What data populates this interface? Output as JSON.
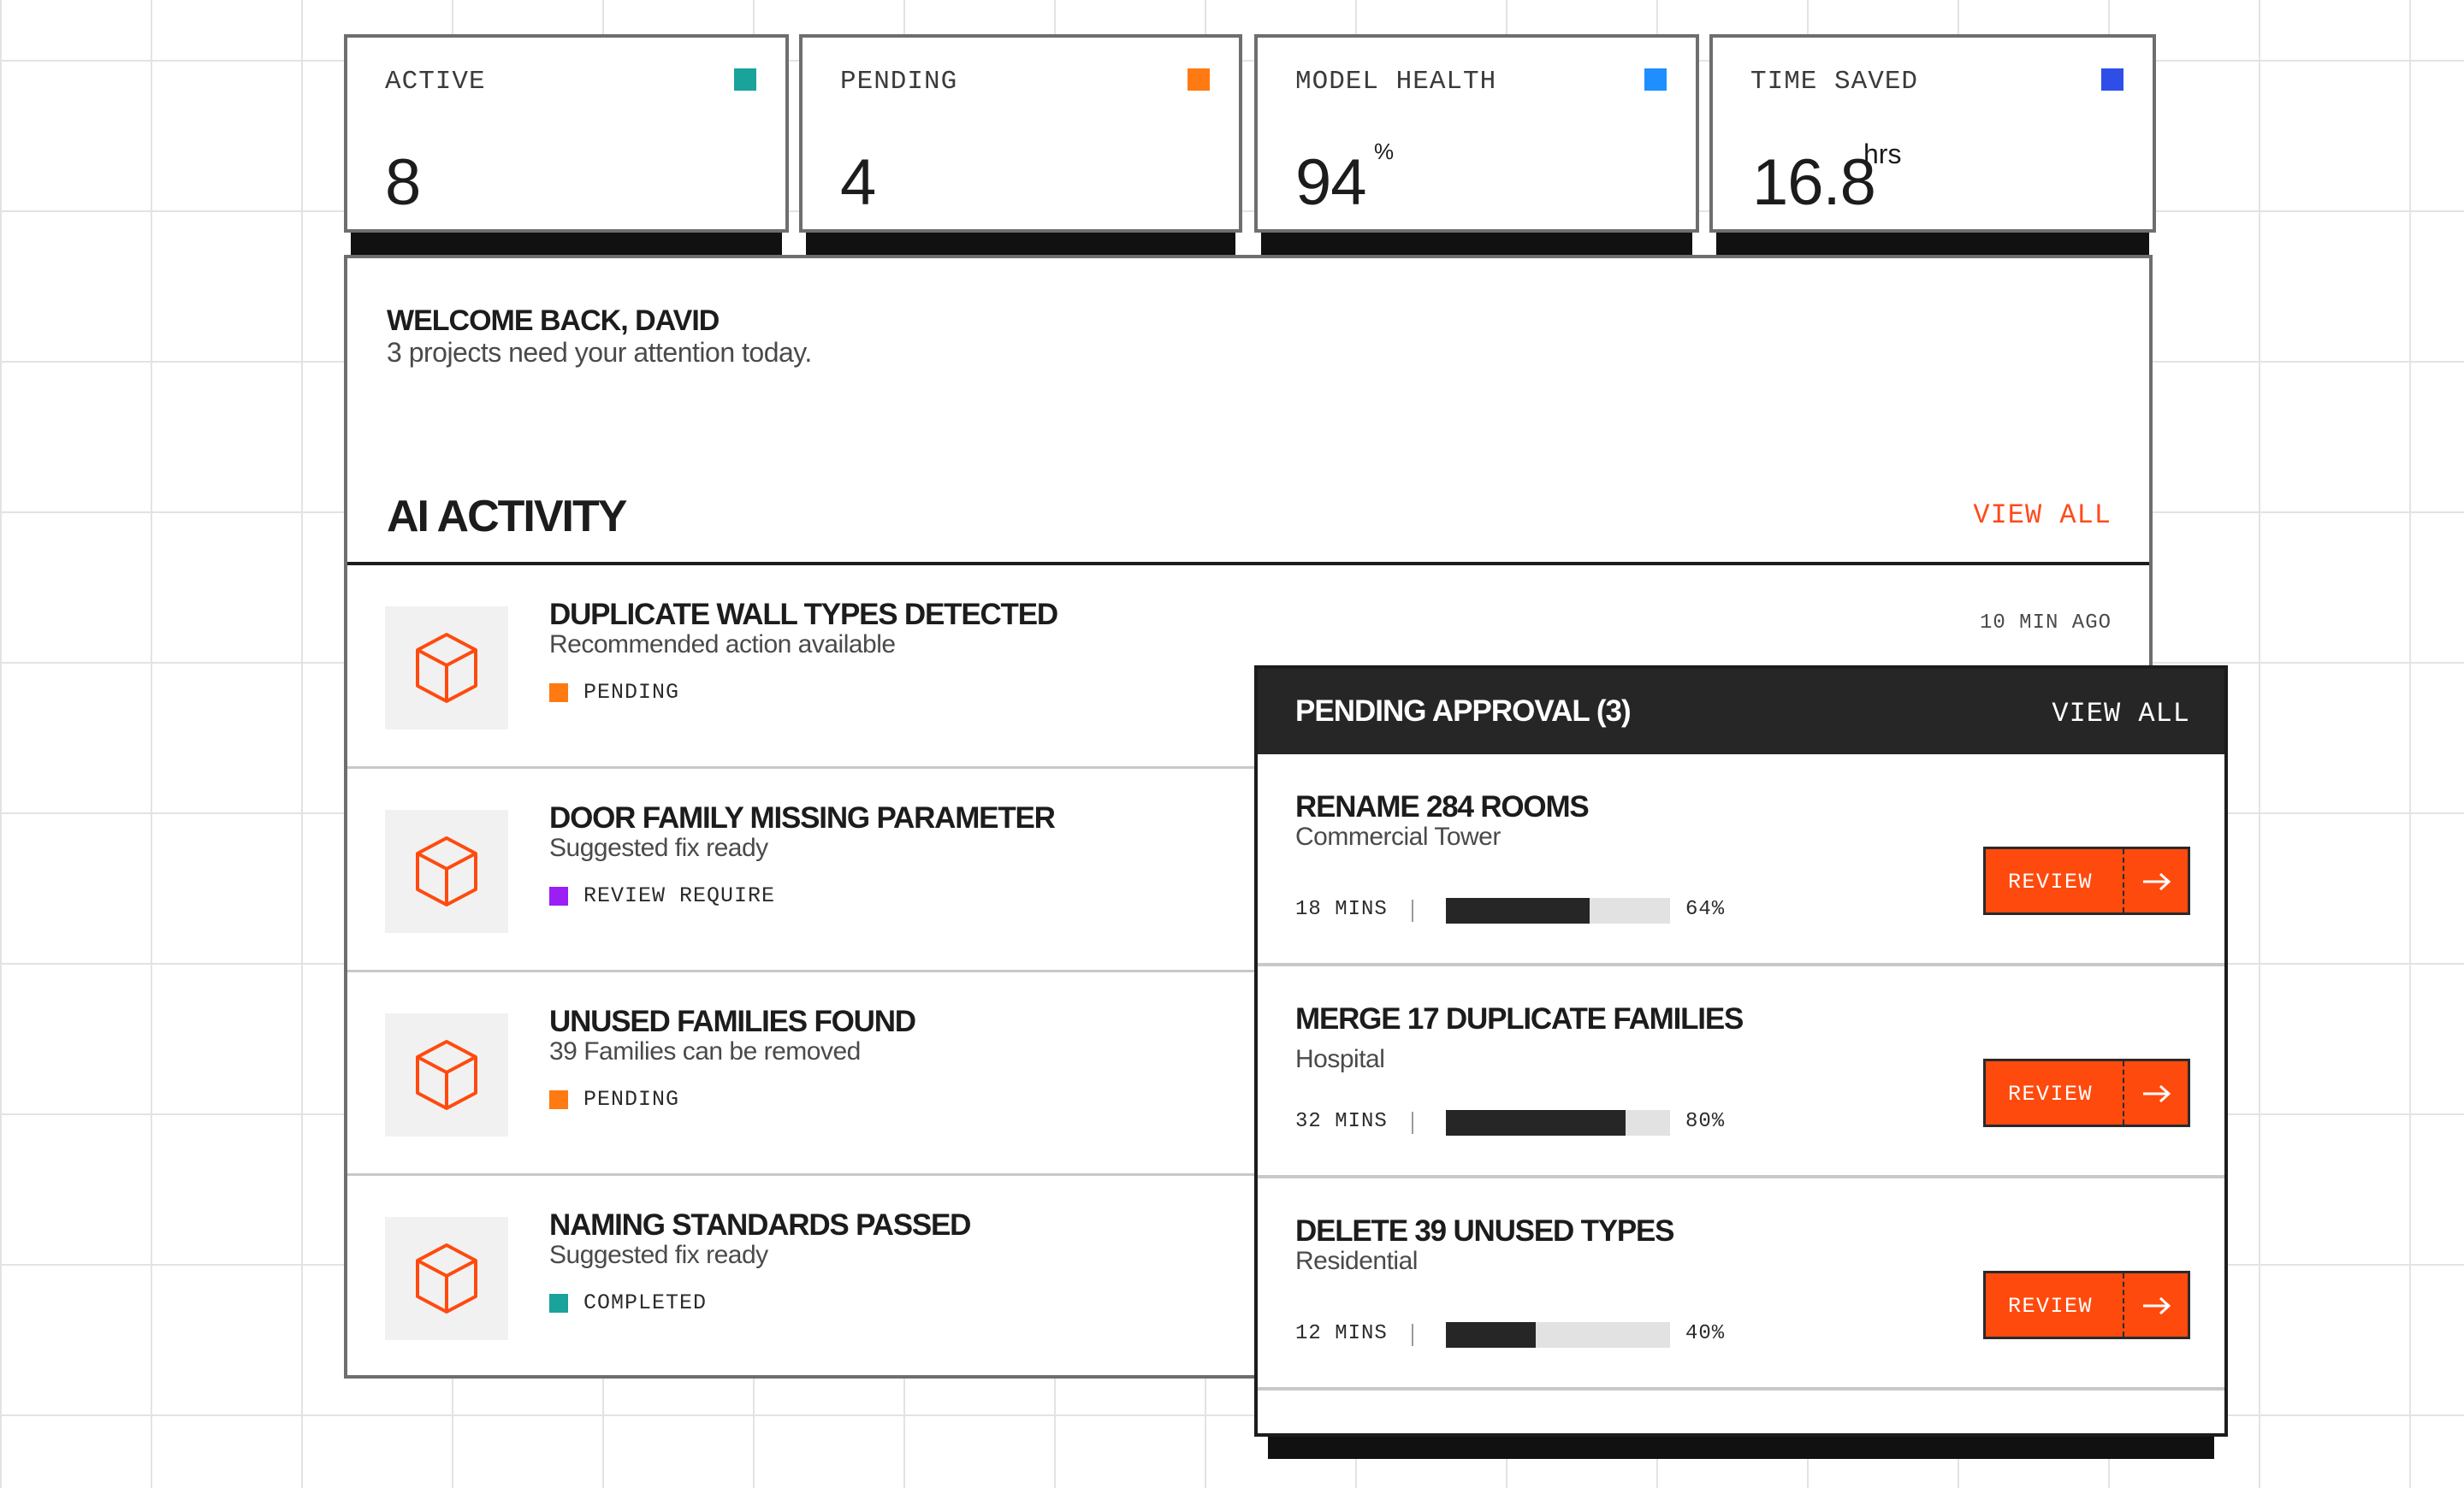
{
  "stats": [
    {
      "label": "ACTIVE",
      "value": "8",
      "unit": "",
      "color": "#1aa39a"
    },
    {
      "label": "PENDING",
      "value": "4",
      "unit": "",
      "color": "#ff7a12"
    },
    {
      "label": "MODEL HEALTH",
      "value": "94",
      "unit": "%",
      "color": "#1f8fff"
    },
    {
      "label": "TIME SAVED",
      "value": "16.8",
      "unit": "hrs",
      "color": "#2f4ee8"
    }
  ],
  "welcome": {
    "title": "WELCOME BACK, DAVID",
    "subtitle": "3 projects need your attention today."
  },
  "activity": {
    "title": "AI ACTIVITY",
    "view_all": "VIEW ALL",
    "items": [
      {
        "title": "DUPLICATE WALL TYPES DETECTED",
        "subtitle": "Recommended action available",
        "status": "PENDING",
        "status_color": "#ff7a12",
        "time": "10 MIN AGO",
        "icon": "cube-icon"
      },
      {
        "title": "DOOR FAMILY MISSING PARAMETER",
        "subtitle": "Suggested fix ready",
        "status": "REVIEW REQUIRE",
        "status_color": "#9b1ff5",
        "time": "",
        "icon": "cube-icon"
      },
      {
        "title": "UNUSED FAMILIES FOUND",
        "subtitle": "39 Families can be removed",
        "status": "PENDING",
        "status_color": "#ff7a12",
        "time": "",
        "icon": "cube-icon"
      },
      {
        "title": "NAMING STANDARDS PASSED",
        "subtitle": "Suggested fix ready",
        "status": "COMPLETED",
        "status_color": "#1aa39a",
        "time": "",
        "icon": "cube-icon"
      }
    ]
  },
  "pending_approval": {
    "title": "PENDING APPROVAL (3)",
    "view_all": "VIEW ALL",
    "items": [
      {
        "title": "RENAME 284 ROOMS",
        "subtitle": "Commercial Tower",
        "time": "18 MINS",
        "progress": 64,
        "progress_label": "64%",
        "button": "REVIEW"
      },
      {
        "title": "MERGE 17 DUPLICATE FAMILIES",
        "subtitle": "Hospital",
        "time": "32 MINS",
        "progress": 80,
        "progress_label": "80%",
        "button": "REVIEW"
      },
      {
        "title": "DELETE 39 UNUSED TYPES",
        "subtitle": "Residential",
        "time": "12 MINS",
        "progress": 40,
        "progress_label": "40%",
        "button": "REVIEW"
      }
    ]
  },
  "colors": {
    "accent": "#ff4a0e",
    "dark": "#262626"
  }
}
